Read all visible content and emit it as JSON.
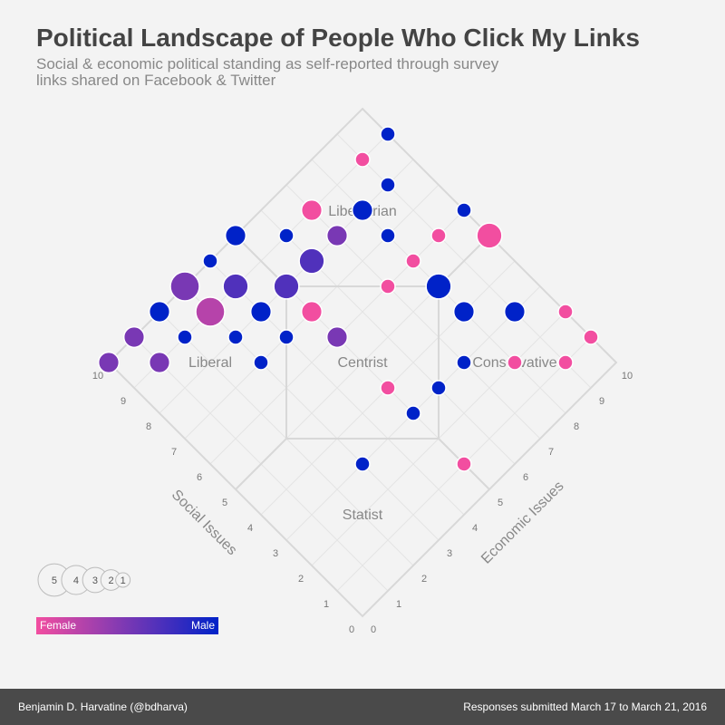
{
  "chart_data": {
    "type": "scatter",
    "title": "Political Landscape of People Who Click My Links",
    "subtitle": [
      "Social & economic political standing as self-reported through survey",
      "links shared on Facebook & Twitter"
    ],
    "x_label": "Economic Issues",
    "y_label": "Social Issues",
    "regions": [
      "Libertarian",
      "Liberal",
      "Centrist",
      "Conservative",
      "Statist"
    ],
    "xlim": [
      0,
      10
    ],
    "ylim": [
      0,
      10
    ],
    "xticks": [
      0,
      1,
      2,
      3,
      4,
      5,
      6,
      7,
      8,
      9,
      10
    ],
    "yticks": [
      0,
      1,
      2,
      3,
      4,
      5,
      6,
      7,
      8,
      9,
      10
    ],
    "grid": true,
    "x": [
      10,
      9,
      9,
      7,
      8,
      10,
      5,
      6,
      7,
      8,
      9,
      10,
      4,
      6,
      8,
      3,
      4,
      5,
      7,
      8,
      2,
      3,
      4,
      5,
      8,
      9,
      10,
      1,
      2,
      3,
      4,
      5,
      10,
      0,
      1,
      3,
      7,
      8,
      9,
      5,
      6,
      5,
      3,
      5
    ],
    "y": [
      9,
      9,
      8,
      9,
      8,
      6,
      10,
      9,
      8,
      7,
      6,
      5,
      10,
      8,
      6,
      10,
      9,
      8,
      6,
      5,
      10,
      9,
      8,
      7,
      4,
      3,
      2,
      10,
      9,
      8,
      7,
      6,
      1,
      10,
      9,
      7,
      3,
      2,
      1,
      4,
      3,
      3,
      3,
      1
    ],
    "sizes": [
      1,
      1,
      1,
      2,
      2,
      1,
      2,
      1,
      2,
      1,
      1,
      3,
      1,
      3,
      1,
      4,
      3,
      3,
      1,
      3,
      2,
      4,
      2,
      2,
      2,
      2,
      1,
      2,
      1,
      1,
      1,
      2,
      1,
      2,
      2,
      1,
      1,
      1,
      1,
      1,
      1,
      1,
      1,
      1
    ],
    "female_share": [
      0,
      1,
      0,
      1,
      0,
      0,
      0,
      0,
      0.5,
      0,
      1,
      1,
      0,
      0.33,
      1,
      0.5,
      0.33,
      0.33,
      1,
      0,
      0,
      0.75,
      0,
      1,
      0,
      0,
      1,
      0.5,
      0,
      0,
      0,
      0.5,
      1,
      0.5,
      0.5,
      0,
      0,
      1,
      1,
      1,
      0,
      0,
      0,
      1
    ],
    "size_legend": [
      5,
      4,
      3,
      2,
      1
    ],
    "color_legend": [
      "Female",
      "Male"
    ],
    "color_female": "#f24ea0",
    "color_male": "#0022c8",
    "footer_left": "Benjamin D. Harvatine (@bdharva)",
    "footer_right": "Responses submitted March 17 to March 21, 2016"
  }
}
